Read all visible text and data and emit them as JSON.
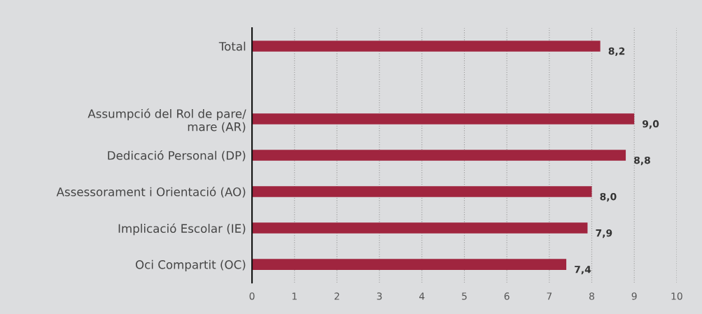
{
  "chart_data": {
    "type": "bar",
    "orientation": "horizontal",
    "categories": [
      "Total",
      null,
      "Assumpció del Rol de pare/\nmare (AR)",
      "Dedicació Personal (DP)",
      "Assessorament i Orientació (AO)",
      "Implicació Escolar (IE)",
      "Oci Compartit (OC)"
    ],
    "values": [
      8.2,
      null,
      9.0,
      8.8,
      8.0,
      7.9,
      7.4
    ],
    "value_labels": [
      "8,2",
      null,
      "9,0",
      "8,8",
      "8,0",
      "7,9",
      "7,4"
    ],
    "color": "#a0253f",
    "xlim": [
      0,
      10
    ],
    "xticks": [
      0,
      1,
      2,
      3,
      4,
      5,
      6,
      7,
      8,
      9,
      10
    ],
    "grid": "x"
  }
}
